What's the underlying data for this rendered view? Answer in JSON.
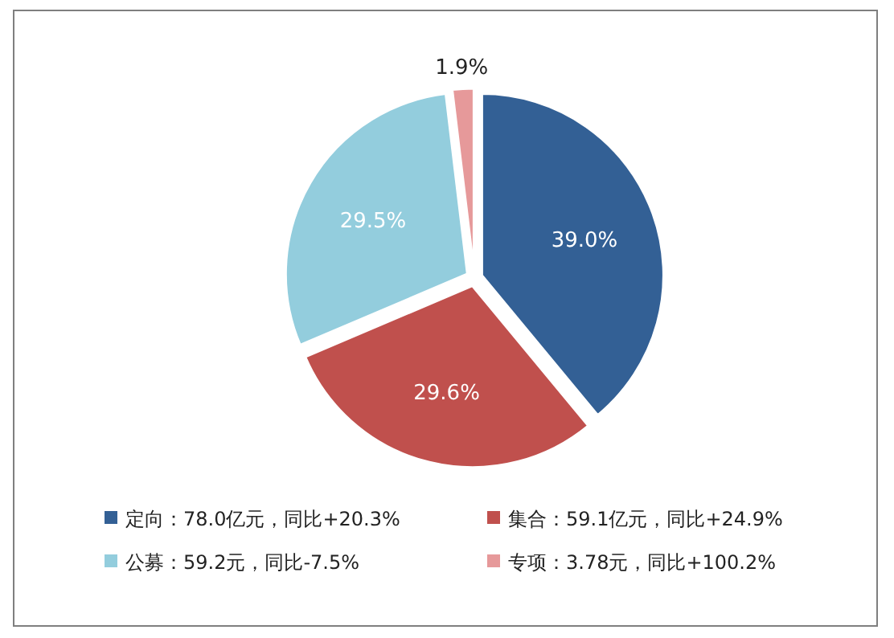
{
  "chart_data": {
    "type": "pie",
    "categories": [
      "定向：78.0亿元，同比+20.3%",
      "集合：59.1亿元，同比+24.9%",
      "公募：59.2元，同比-7.5%",
      "专项：3.78元，同比+100.2%"
    ],
    "values": [
      39.0,
      29.6,
      29.5,
      1.9
    ],
    "value_labels": [
      "39.0%",
      "29.6%",
      "29.5%",
      "1.9%"
    ],
    "colors": [
      "#336095",
      "#c0504d",
      "#93cddd",
      "#e6999a"
    ],
    "legend": "bottom"
  }
}
